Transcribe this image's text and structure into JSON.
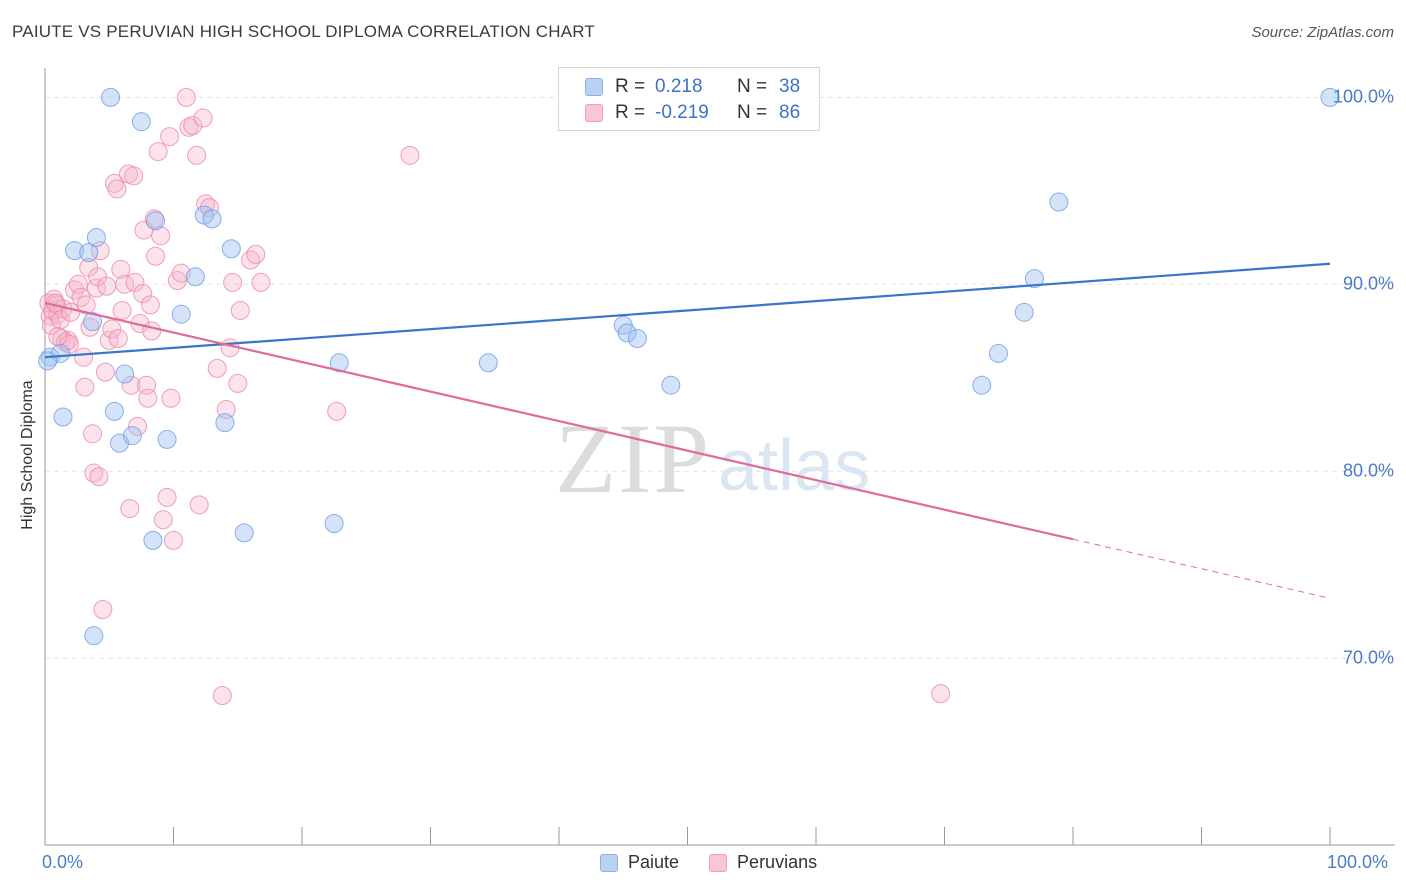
{
  "header": {
    "title": "PAIUTE VS PERUVIAN HIGH SCHOOL DIPLOMA CORRELATION CHART",
    "source": "Source: ZipAtlas.com"
  },
  "legend": {
    "r_label": "R =",
    "n_label": "N =",
    "rows": [
      {
        "name": "Paiute",
        "r": "0.218",
        "n": "38",
        "color": "#6d9eeb"
      },
      {
        "name": "Peruvians",
        "r": "-0.219",
        "n": "86",
        "color": "#ef87a8"
      }
    ]
  },
  "watermark": {
    "zip": "ZIP",
    "atlas": "atlas"
  },
  "chart_data": {
    "type": "scatter",
    "title": "PAIUTE VS PERUVIAN HIGH SCHOOL DIPLOMA CORRELATION CHART",
    "xlabel": "",
    "ylabel": "High School Diploma",
    "xlim": [
      0,
      100
    ],
    "ylim": [
      60.0,
      102.0
    ],
    "y_ticks": [
      {
        "value": 100,
        "label": "100.0%"
      },
      {
        "value": 90,
        "label": "90.0%"
      },
      {
        "value": 80,
        "label": "80.0%"
      },
      {
        "value": 70,
        "label": "70.0%"
      }
    ],
    "x_tick_labels": {
      "min": "0.0%",
      "max": "100.0%"
    },
    "grid": true,
    "series": [
      {
        "name": "Paiute",
        "color": "#6d9eeb",
        "trend": {
          "x": [
            0,
            100
          ],
          "y": [
            86.1,
            91.1
          ],
          "dashed_from": null
        },
        "points": [
          [
            0.4,
            86.1
          ],
          [
            1.2,
            86.3
          ],
          [
            1.4,
            82.9
          ],
          [
            2.3,
            91.8
          ],
          [
            3.4,
            91.7
          ],
          [
            4.0,
            92.5
          ],
          [
            3.7,
            88.0
          ],
          [
            3.8,
            71.2
          ],
          [
            5.1,
            100.0
          ],
          [
            6.2,
            85.2
          ],
          [
            5.4,
            83.2
          ],
          [
            5.8,
            81.5
          ],
          [
            6.8,
            81.9
          ],
          [
            7.5,
            98.7
          ],
          [
            8.4,
            76.3
          ],
          [
            8.6,
            93.4
          ],
          [
            9.5,
            81.7
          ],
          [
            10.6,
            88.4
          ],
          [
            11.7,
            90.4
          ],
          [
            12.4,
            93.7
          ],
          [
            13.0,
            93.5
          ],
          [
            14.0,
            82.6
          ],
          [
            14.5,
            91.9
          ],
          [
            15.5,
            76.7
          ],
          [
            22.5,
            77.2
          ],
          [
            22.9,
            85.8
          ],
          [
            34.5,
            85.8
          ],
          [
            45.0,
            87.8
          ],
          [
            45.3,
            87.4
          ],
          [
            46.1,
            87.1
          ],
          [
            48.7,
            84.6
          ],
          [
            72.9,
            84.6
          ],
          [
            74.2,
            86.3
          ],
          [
            76.2,
            88.5
          ],
          [
            77.0,
            90.3
          ],
          [
            78.9,
            94.4
          ],
          [
            100.0,
            100.0
          ],
          [
            0.2,
            85.9
          ]
        ]
      },
      {
        "name": "Peruvians",
        "color": "#ef87a8",
        "trend": {
          "x": [
            0,
            100
          ],
          "y": [
            89.0,
            73.2
          ],
          "dashed_from": 80
        },
        "points": [
          [
            0.3,
            89.0
          ],
          [
            0.4,
            88.3
          ],
          [
            0.5,
            87.8
          ],
          [
            0.6,
            88.6
          ],
          [
            0.7,
            89.2
          ],
          [
            0.9,
            88.9
          ],
          [
            1.0,
            88.4
          ],
          [
            1.2,
            88.1
          ],
          [
            1.3,
            87.1
          ],
          [
            1.4,
            88.7
          ],
          [
            1.6,
            86.9
          ],
          [
            1.8,
            87.0
          ],
          [
            1.9,
            86.8
          ],
          [
            2.0,
            88.5
          ],
          [
            2.3,
            89.7
          ],
          [
            2.6,
            90.0
          ],
          [
            2.8,
            89.3
          ],
          [
            3.0,
            86.1
          ],
          [
            3.1,
            84.5
          ],
          [
            3.2,
            88.9
          ],
          [
            3.4,
            90.9
          ],
          [
            3.5,
            87.7
          ],
          [
            3.7,
            82.0
          ],
          [
            3.8,
            79.9
          ],
          [
            4.0,
            89.8
          ],
          [
            4.1,
            90.4
          ],
          [
            4.2,
            79.7
          ],
          [
            4.3,
            91.8
          ],
          [
            4.5,
            72.6
          ],
          [
            4.7,
            85.3
          ],
          [
            4.8,
            89.9
          ],
          [
            5.0,
            87.0
          ],
          [
            5.2,
            87.6
          ],
          [
            5.4,
            95.4
          ],
          [
            5.6,
            95.1
          ],
          [
            5.7,
            87.1
          ],
          [
            5.9,
            90.8
          ],
          [
            6.0,
            88.6
          ],
          [
            6.2,
            90.0
          ],
          [
            6.5,
            95.9
          ],
          [
            6.6,
            78.0
          ],
          [
            6.7,
            84.6
          ],
          [
            6.9,
            95.8
          ],
          [
            7.0,
            90.1
          ],
          [
            7.2,
            82.4
          ],
          [
            7.4,
            87.9
          ],
          [
            7.6,
            89.5
          ],
          [
            7.7,
            92.9
          ],
          [
            7.9,
            84.6
          ],
          [
            8.0,
            83.9
          ],
          [
            8.2,
            88.9
          ],
          [
            8.3,
            87.5
          ],
          [
            8.5,
            93.5
          ],
          [
            8.6,
            91.5
          ],
          [
            8.8,
            97.1
          ],
          [
            9.0,
            92.6
          ],
          [
            9.2,
            77.4
          ],
          [
            9.5,
            78.6
          ],
          [
            9.7,
            97.9
          ],
          [
            9.8,
            83.9
          ],
          [
            10.0,
            76.3
          ],
          [
            10.3,
            90.2
          ],
          [
            10.6,
            90.6
          ],
          [
            11.0,
            100.0
          ],
          [
            11.2,
            98.4
          ],
          [
            11.5,
            98.5
          ],
          [
            11.8,
            96.9
          ],
          [
            12.0,
            78.2
          ],
          [
            12.3,
            98.9
          ],
          [
            12.5,
            94.3
          ],
          [
            12.8,
            94.1
          ],
          [
            13.4,
            85.5
          ],
          [
            13.8,
            68.0
          ],
          [
            14.1,
            83.3
          ],
          [
            14.4,
            86.6
          ],
          [
            14.6,
            90.1
          ],
          [
            15.0,
            84.7
          ],
          [
            15.2,
            88.6
          ],
          [
            16.0,
            91.3
          ],
          [
            16.4,
            91.6
          ],
          [
            16.8,
            90.1
          ],
          [
            22.7,
            83.2
          ],
          [
            28.4,
            96.9
          ],
          [
            69.7,
            68.1
          ],
          [
            0.8,
            89.0
          ],
          [
            1.0,
            87.2
          ]
        ]
      }
    ]
  }
}
